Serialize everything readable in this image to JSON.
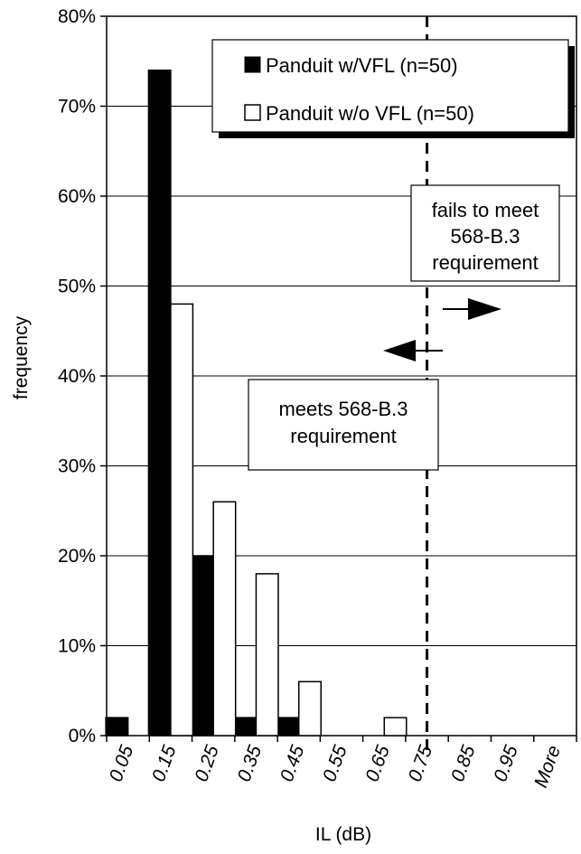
{
  "chart_data": {
    "type": "bar",
    "title": "",
    "xlabel": "IL (dB)",
    "ylabel": "frequency",
    "categories": [
      "0.05",
      "0.15",
      "0.25",
      "0.35",
      "0.45",
      "0.55",
      "0.65",
      "0.75",
      "0.85",
      "0.95",
      "More"
    ],
    "series": [
      {
        "name": "Panduit w/VFL (n=50)",
        "fill": "#000000",
        "values": [
          2,
          74,
          20,
          2,
          2,
          0,
          0,
          0,
          0,
          0,
          0
        ]
      },
      {
        "name": "Panduit w/o VFL (n=50)",
        "fill": "#ffffff",
        "values": [
          0,
          48,
          26,
          18,
          6,
          0,
          2,
          0,
          0,
          0,
          0
        ]
      }
    ],
    "ylim": [
      0,
      80
    ],
    "yticks": [
      0,
      10,
      20,
      30,
      40,
      50,
      60,
      70,
      80
    ],
    "y_tick_suffix": "%",
    "grid": true,
    "legend": "top-right",
    "threshold": {
      "x_category_position": 7.5,
      "style": "dashed"
    },
    "annotations": {
      "fail_label": [
        "fails to meet",
        "568-B.3",
        "requirement"
      ],
      "meet_label": [
        "meets 568-B.3",
        "requirement"
      ]
    }
  }
}
